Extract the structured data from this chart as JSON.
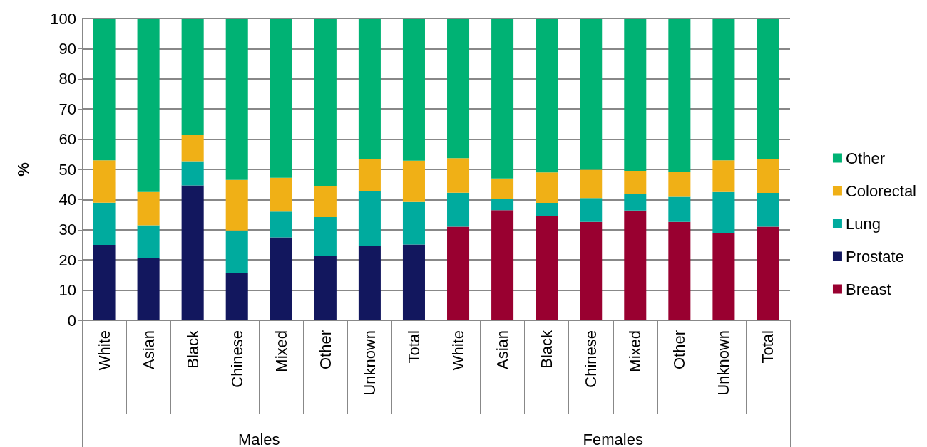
{
  "chart_data": {
    "type": "bar",
    "stacked": true,
    "ylabel": "%",
    "categories": [
      "White",
      "Asian",
      "Black",
      "Chinese",
      "Mixed",
      "Other",
      "Unknown",
      "Total",
      "White",
      "Asian",
      "Black",
      "Chinese",
      "Mixed",
      "Other",
      "Unknown",
      "Total"
    ],
    "annotations": [
      "Males",
      "Females"
    ],
    "series": [
      {
        "name": "Breast",
        "color": "#990030",
        "values": [
          null,
          null,
          null,
          null,
          null,
          null,
          null,
          null,
          31,
          36.5,
          34.5,
          32.6,
          36.4,
          32.6,
          28.8,
          31
        ]
      },
      {
        "name": "Prostate",
        "color": "#12175e",
        "values": [
          25,
          20.5,
          44.7,
          15.7,
          27.5,
          21.2,
          24.6,
          25.1,
          null,
          null,
          null,
          null,
          null,
          null,
          null,
          null
        ]
      },
      {
        "name": "Lung",
        "color": "#00ab9e",
        "values": [
          14,
          11,
          8,
          14.1,
          8.5,
          13,
          18.2,
          14.1,
          11.3,
          3.6,
          4.4,
          7.9,
          5.6,
          8.3,
          13.7,
          11.2
        ]
      },
      {
        "name": "Colorectal",
        "color": "#f0b016",
        "values": [
          14,
          11,
          8.6,
          16.7,
          11.2,
          10.2,
          10.6,
          13.7,
          11.4,
          6.9,
          10.1,
          9.4,
          7.5,
          8.3,
          10.5,
          11.1
        ]
      },
      {
        "name": "Other",
        "color": "#00b274",
        "values": [
          47,
          57.5,
          38.7,
          53.5,
          52.8,
          55.6,
          46.6,
          47.1,
          46.3,
          53,
          51,
          50.1,
          50.5,
          50.8,
          47,
          46.7
        ]
      }
    ],
    "ylim": [
      0,
      100
    ],
    "yticks": [
      0,
      10,
      20,
      30,
      40,
      50,
      60,
      70,
      80,
      90,
      100
    ],
    "grid": "y",
    "legend": "right"
  }
}
